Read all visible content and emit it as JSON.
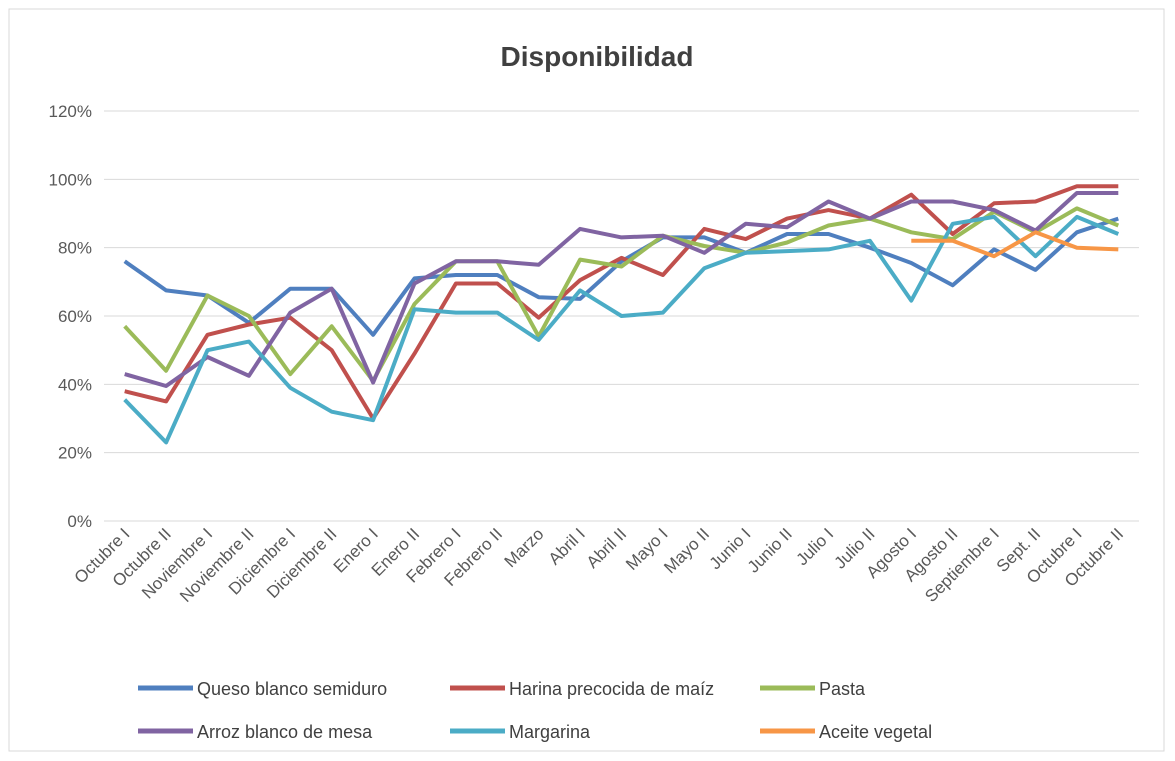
{
  "chart_data": {
    "type": "line",
    "title": "Disponibilidad",
    "categories": [
      "Octubre I",
      "Octubre II",
      "Noviembre I",
      "Noviembre II",
      "Diciembre I",
      "Diciembre II",
      "Enero I",
      "Enero II",
      "Febrero I",
      "Febrero II",
      "Marzo",
      "Abril I",
      "Abril II",
      "Mayo I",
      "Mayo II",
      "Junio I",
      "Junio II",
      "Julio I",
      "Julio II",
      "Agosto I",
      "Agosto II",
      "Septiembre I",
      "Sept. II",
      "Octubre I",
      "Octubre II"
    ],
    "series": [
      {
        "name": "Queso blanco semiduro",
        "color": "#4f7fbf",
        "values": [
          76,
          67.5,
          66,
          58,
          68,
          68,
          54.5,
          71,
          72,
          72,
          65.5,
          65,
          76,
          83,
          83,
          78.5,
          84,
          84,
          80,
          75.5,
          69,
          79.5,
          73.5,
          84.5,
          88.5
        ]
      },
      {
        "name": "Harina precocida de maíz",
        "color": "#c0504d",
        "values": [
          38,
          35,
          54.5,
          57.5,
          59.5,
          50,
          30,
          49,
          69.5,
          69.5,
          59.5,
          70.5,
          77,
          72,
          85.5,
          82.5,
          88.5,
          91,
          88.5,
          95.5,
          84,
          93,
          93.5,
          98,
          98
        ]
      },
      {
        "name": "Pasta",
        "color": "#9bbb59",
        "values": [
          57,
          44,
          66,
          60,
          43,
          57,
          41,
          63.5,
          76,
          76,
          54,
          76.5,
          74.5,
          83.5,
          80.5,
          78.5,
          81.5,
          86.5,
          88.5,
          84.5,
          82.5,
          90.5,
          84.5,
          91.5,
          86.5
        ]
      },
      {
        "name": "Arroz blanco de mesa",
        "color": "#8064a2",
        "values": [
          43,
          39.5,
          48,
          42.5,
          61,
          68,
          40.5,
          69.5,
          76,
          76,
          75,
          85.5,
          83,
          83.5,
          78.5,
          87,
          86,
          93.5,
          88.5,
          93.5,
          93.5,
          91,
          85,
          96,
          96
        ]
      },
      {
        "name": "Margarina",
        "color": "#4bacc6",
        "values": [
          35.5,
          23,
          50,
          52.5,
          39,
          32,
          29.5,
          62,
          61,
          61,
          53,
          67.5,
          60,
          61,
          74,
          78.5,
          79,
          79.5,
          82,
          64.5,
          87,
          89,
          77.5,
          89,
          84
        ]
      },
      {
        "name": "Aceite vegetal",
        "color": "#f79646",
        "values": [
          null,
          null,
          null,
          null,
          null,
          null,
          null,
          null,
          null,
          null,
          null,
          null,
          null,
          null,
          null,
          null,
          null,
          null,
          null,
          82,
          82,
          77.5,
          84.5,
          80,
          79.5
        ]
      }
    ],
    "ylim": [
      0,
      120
    ],
    "yticks": [
      {
        "value": 0,
        "label": "0%"
      },
      {
        "value": 20,
        "label": "20%"
      },
      {
        "value": 40,
        "label": "40%"
      },
      {
        "value": 60,
        "label": "60%"
      },
      {
        "value": 80,
        "label": "80%"
      },
      {
        "value": 100,
        "label": "100%"
      },
      {
        "value": 120,
        "label": "120%"
      }
    ],
    "grid": true,
    "legend": "bottom"
  }
}
